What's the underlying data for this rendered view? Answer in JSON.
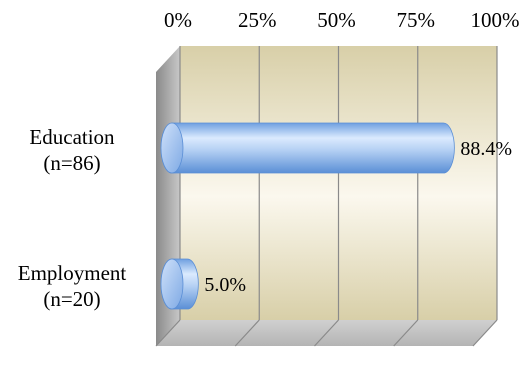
{
  "chart_data": {
    "type": "bar",
    "orientation": "horizontal",
    "style": "3d-cylinder",
    "categories": [
      "Education\n(n=86)",
      "Employment\n(n=20)"
    ],
    "values": [
      88.4,
      5.0
    ],
    "data_labels": [
      "88.4%",
      "5.0%"
    ],
    "xlim": [
      0,
      100
    ],
    "x_ticks": [
      0,
      25,
      50,
      75,
      100
    ],
    "x_tick_labels": [
      "0%",
      "25%",
      "50%",
      "75%",
      "100%"
    ],
    "x_axis_position": "top",
    "title": "",
    "xlabel": "",
    "ylabel": "",
    "grid": true,
    "legend": "none",
    "colors": {
      "bar": "#a9c8ef",
      "bar_dark": "#5b8fd6",
      "bar_light": "#e3efff",
      "back_wall": "#ddd6b8",
      "floor": "#c4c4c4",
      "side_wall": "#9a9a9a",
      "gridline": "#7f7f7f"
    }
  }
}
